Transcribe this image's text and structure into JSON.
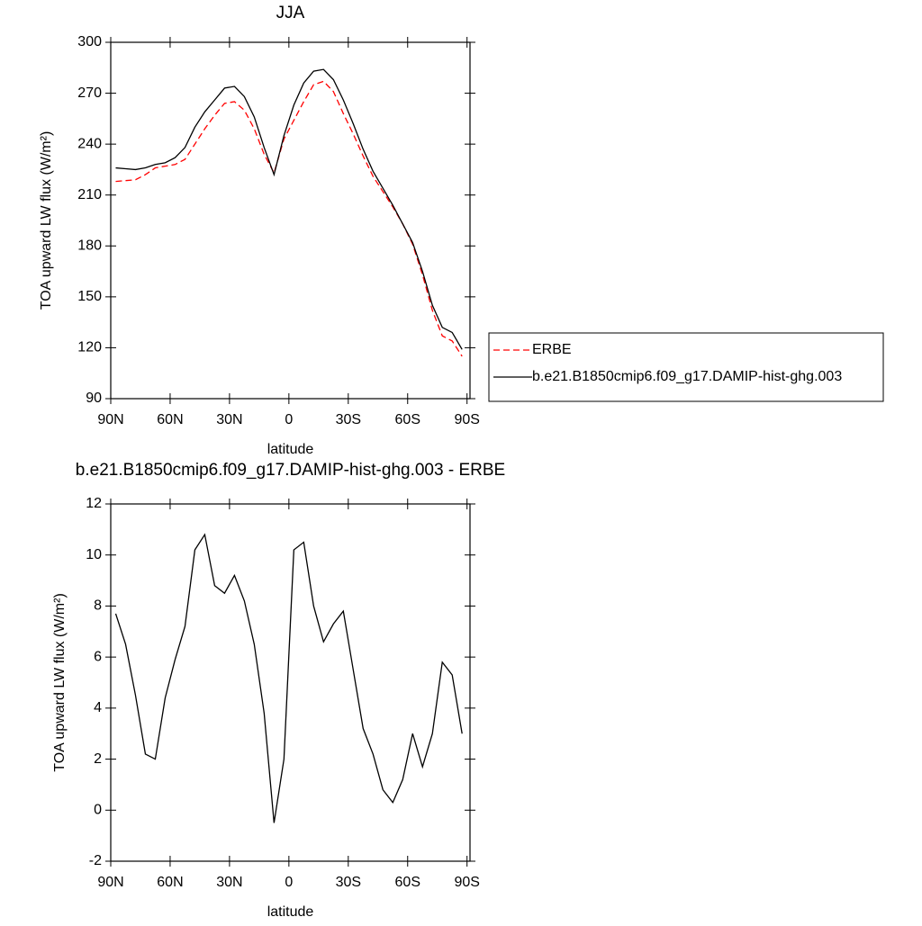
{
  "chart_data": [
    {
      "type": "line",
      "title": "JJA",
      "xlabel": "latitude",
      "ylabel": "TOA upward LW flux (W/m²)",
      "x": [
        87.5,
        82.5,
        77.5,
        72.5,
        67.5,
        62.5,
        57.5,
        52.5,
        47.5,
        42.5,
        37.5,
        32.5,
        27.5,
        22.5,
        17.5,
        12.5,
        7.5,
        2.5,
        -2.5,
        -7.5,
        -12.5,
        -17.5,
        -22.5,
        -27.5,
        -32.5,
        -37.5,
        -42.5,
        -47.5,
        -52.5,
        -57.5,
        -62.5,
        -67.5,
        -72.5,
        -77.5,
        -82.5,
        -87.5
      ],
      "series": [
        {
          "name": "ERBE",
          "color": "#ff0000",
          "dash": true,
          "values": [
            218,
            218.5,
            219,
            222,
            226,
            227,
            228,
            231,
            240,
            249,
            257,
            264,
            265,
            260,
            249,
            234,
            223,
            243,
            254,
            265,
            275,
            277,
            271,
            258,
            246,
            233,
            221,
            212,
            203,
            193,
            181,
            163,
            142,
            127,
            124,
            115
          ]
        },
        {
          "name": "b.e21.B1850cmip6.f09_g17.DAMIP-hist-ghg.003",
          "color": "#000000",
          "dash": false,
          "values": [
            226,
            225.5,
            225,
            226,
            228,
            229,
            232,
            238,
            250,
            259,
            266,
            273,
            274,
            268,
            256,
            238,
            222,
            245,
            263,
            276,
            283,
            284,
            278,
            266,
            252,
            237,
            224,
            214,
            204,
            193,
            182,
            165,
            145,
            132,
            129,
            119
          ]
        }
      ],
      "xlim": [
        90,
        -91.5
      ],
      "xticks": [
        {
          "value": 90,
          "label": "90N"
        },
        {
          "value": 60,
          "label": "60N"
        },
        {
          "value": 30,
          "label": "30N"
        },
        0,
        {
          "value": -30,
          "label": "30S"
        },
        {
          "value": -60,
          "label": "60S"
        },
        {
          "value": -90,
          "label": "90S"
        }
      ],
      "ylim": [
        90,
        300
      ],
      "yticks": [
        90,
        120,
        150,
        180,
        210,
        240,
        270,
        300
      ],
      "legend": "right"
    },
    {
      "type": "line",
      "title": "b.e21.B1850cmip6.f09_g17.DAMIP-hist-ghg.003 - ERBE",
      "xlabel": "latitude",
      "ylabel": "TOA upward LW flux (W/m²)",
      "x": [
        87.5,
        82.5,
        77.5,
        72.5,
        67.5,
        62.5,
        57.5,
        52.5,
        47.5,
        42.5,
        37.5,
        32.5,
        27.5,
        22.5,
        17.5,
        12.5,
        7.5,
        2.5,
        -2.5,
        -7.5,
        -12.5,
        -17.5,
        -22.5,
        -27.5,
        -32.5,
        -37.5,
        -42.5,
        -47.5,
        -52.5,
        -57.5,
        -62.5,
        -67.5,
        -72.5,
        -77.5,
        -82.5,
        -87.5
      ],
      "series": [
        {
          "color": "#000000",
          "dash": false,
          "values": [
            7.7,
            6.5,
            4.5,
            2.2,
            2.0,
            4.4,
            5.9,
            7.2,
            10.2,
            10.8,
            8.8,
            8.5,
            9.2,
            8.2,
            6.5,
            3.8,
            -0.5,
            2.0,
            10.2,
            10.5,
            8.0,
            6.6,
            7.3,
            7.8,
            5.5,
            3.2,
            2.2,
            0.8,
            0.3,
            1.2,
            3.0,
            1.7,
            3.0,
            5.8,
            5.3,
            3.0
          ]
        }
      ],
      "xlim": [
        90,
        -91.5
      ],
      "xticks": [
        {
          "value": 90,
          "label": "90N"
        },
        {
          "value": 60,
          "label": "60N"
        },
        {
          "value": 30,
          "label": "30N"
        },
        0,
        {
          "value": -30,
          "label": "30S"
        },
        {
          "value": -60,
          "label": "60S"
        },
        {
          "value": -90,
          "label": "90S"
        }
      ],
      "ylim": [
        -2,
        12
      ],
      "yticks": [
        -2,
        0,
        2,
        4,
        6,
        8,
        10,
        12
      ]
    }
  ]
}
